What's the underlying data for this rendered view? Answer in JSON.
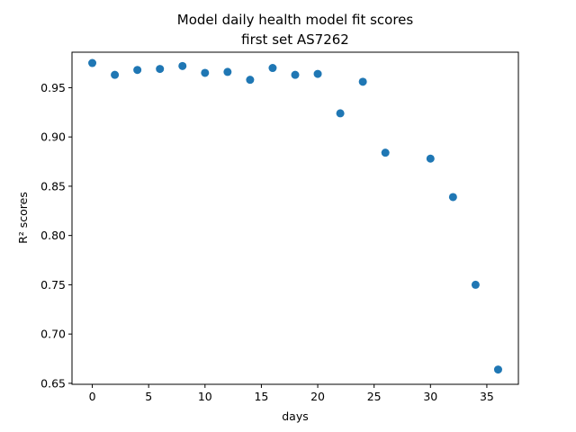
{
  "chart_data": {
    "type": "scatter",
    "title": "Model daily health model fit scores",
    "subtitle": "first set AS7262",
    "xlabel": "days",
    "ylabel": "R² scores",
    "xlim": [
      -1.8,
      37.8
    ],
    "ylim": [
      0.649,
      0.986
    ],
    "xticks": [
      0,
      5,
      10,
      15,
      20,
      25,
      30,
      35
    ],
    "yticks": [
      0.65,
      0.7,
      0.75,
      0.8,
      0.85,
      0.9,
      0.95
    ],
    "ytick_labels": [
      "0.65",
      "0.70",
      "0.75",
      "0.80",
      "0.85",
      "0.90",
      "0.95"
    ],
    "grid": false,
    "marker_color": "#1f77b4",
    "series": [
      {
        "x": [
          0,
          2,
          4,
          6,
          8,
          10,
          12,
          14,
          16,
          18,
          20,
          22,
          24,
          26,
          30,
          32,
          34,
          36
        ],
        "y": [
          0.975,
          0.963,
          0.968,
          0.969,
          0.972,
          0.965,
          0.966,
          0.958,
          0.97,
          0.963,
          0.964,
          0.924,
          0.956,
          0.884,
          0.878,
          0.839,
          0.75,
          0.664
        ]
      }
    ]
  }
}
